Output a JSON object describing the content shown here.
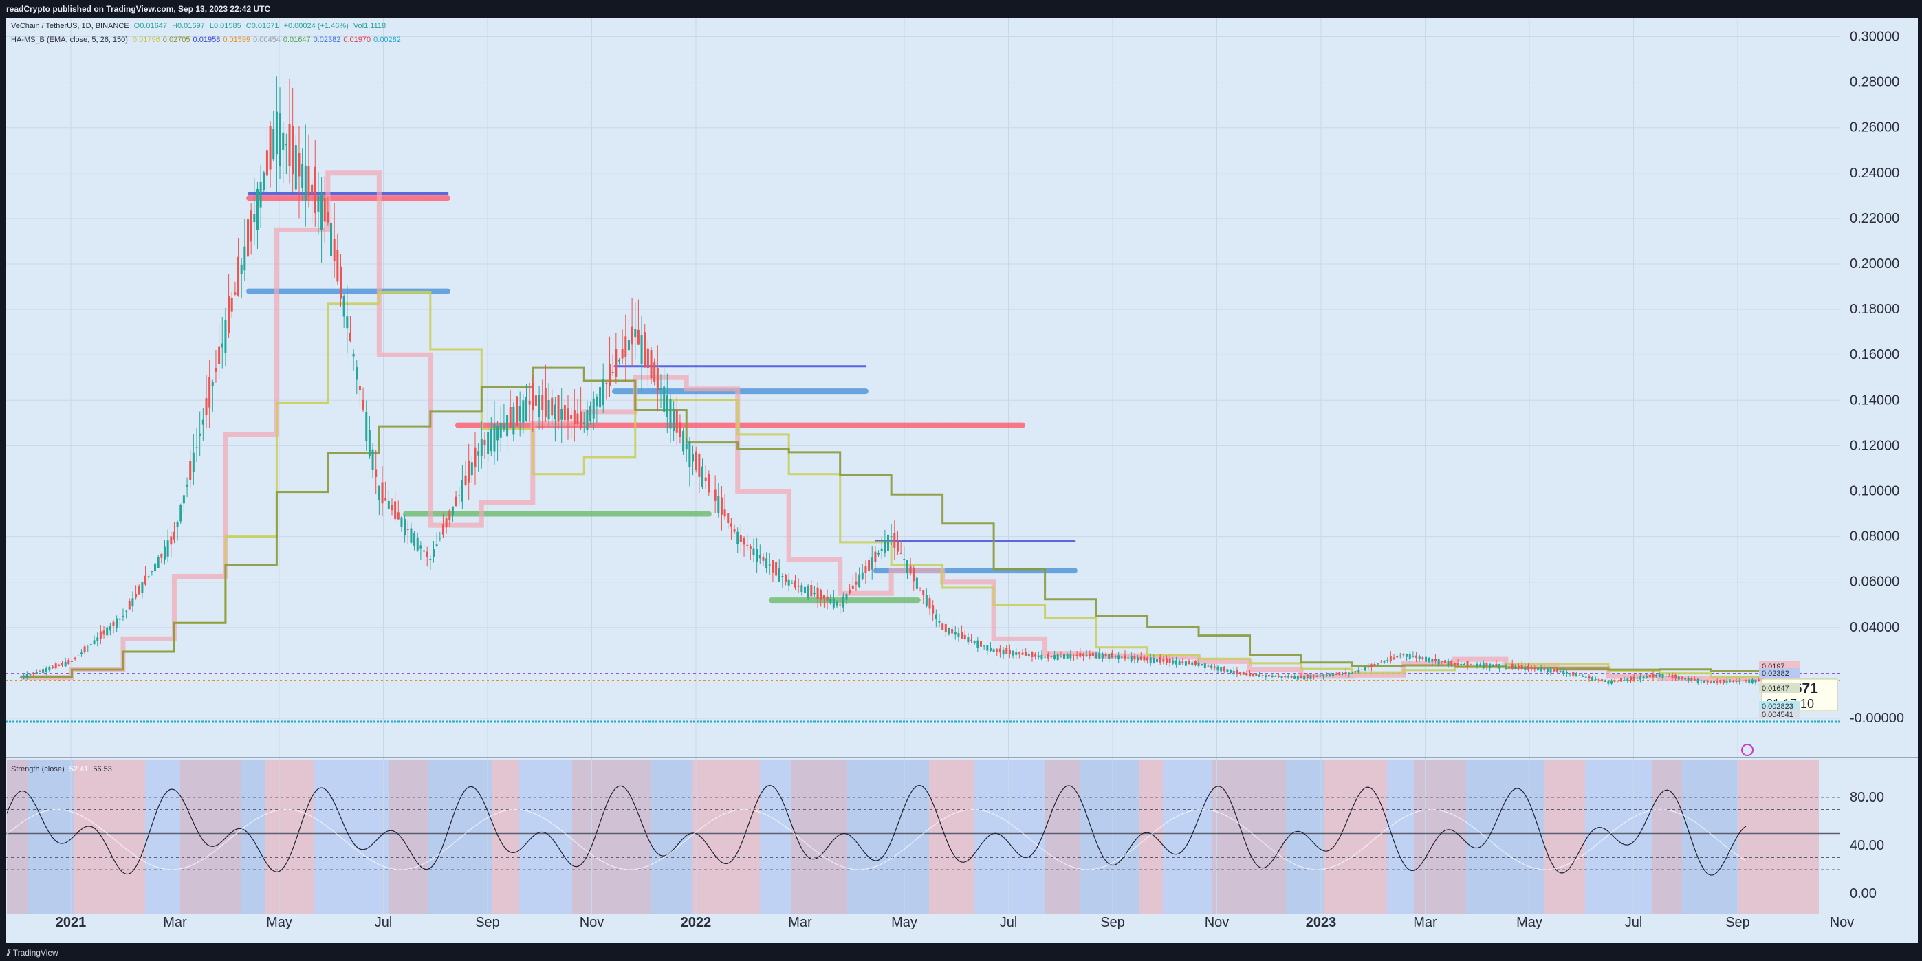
{
  "header": {
    "published": "readCrypto published on TradingView.com, Sep 13, 2023 22:42 UTC"
  },
  "legend": {
    "symbol": "VeChain / TetherUS, 1D, BINANCE",
    "open": "O0.01647",
    "high": "H0.01697",
    "low": "L0.01585",
    "close": "C0.01671",
    "change": "+0.00024 (+1.46%)",
    "volume": "Vol1.1118",
    "indicator": "HA-MS_B (EMA, close, 5, 26, 150)",
    "indicator_values": [
      {
        "text": "0.01796",
        "color": "#c8c84a"
      },
      {
        "text": "0.02705",
        "color": "#8a8f2a"
      },
      {
        "text": "0.01958",
        "color": "#3a46d8"
      },
      {
        "text": "0.01599",
        "color": "#e8901a"
      },
      {
        "text": "0.00454",
        "color": "#9aa0a8"
      },
      {
        "text": "0.01647",
        "color": "#4aa84a"
      },
      {
        "text": "0.02382",
        "color": "#3a72d8"
      },
      {
        "text": "0.01970",
        "color": "#e83a4a"
      },
      {
        "text": "0.00282",
        "color": "#22aacc"
      }
    ]
  },
  "osc_legend": {
    "name": "Strength (close)",
    "v1": "52.41",
    "v2": "56.53"
  },
  "price_badges": {
    "last": "0.01671",
    "countdown": "01:17:10",
    "others": [
      "0.0197",
      "0.02382",
      "0.01647",
      "0.002823",
      "0.004541"
    ]
  },
  "footer": {
    "brand": "TradingView"
  },
  "colors": {
    "background": "#dce9f6",
    "blue_level": "#4a5ae0",
    "red_level": "#ff5a6a",
    "green_level": "#6cba6c",
    "light_blue_level": "#4a94d8",
    "olive": "#8a9a3a",
    "yellow": "#c8cf5a",
    "orange": "#f4a233",
    "pink": "#f4a6b4"
  },
  "chart_data": [
    {
      "type": "line",
      "title": "VeChain / TetherUS, 1D, BINANCE",
      "x_tick_labels": [
        "2021",
        "Mar",
        "May",
        "Jul",
        "Sep",
        "Nov",
        "2022",
        "Mar",
        "May",
        "Jul",
        "Sep",
        "Nov",
        "2023",
        "Mar",
        "May",
        "Jul",
        "Sep",
        "Nov"
      ],
      "y_tick_labels": [
        "0.30000",
        "0.28000",
        "0.26000",
        "0.24000",
        "0.22000",
        "0.20000",
        "0.18000",
        "0.16000",
        "0.14000",
        "0.12000",
        "0.10000",
        "0.08000",
        "0.06000",
        "0.04000",
        "-0.00000"
      ],
      "ylim": [
        -0.004,
        0.305
      ],
      "x": [
        "2020-12",
        "2021-01",
        "2021-02",
        "2021-03",
        "2021-04",
        "2021-04",
        "2021-05",
        "2021-06",
        "2021-07",
        "2021-08",
        "2021-09",
        "2021-10",
        "2021-11",
        "2021-12",
        "2022-01",
        "2022-02",
        "2022-03",
        "2022-04",
        "2022-05",
        "2022-06",
        "2022-07",
        "2022-08",
        "2022-09",
        "2022-10",
        "2022-11",
        "2022-12",
        "2023-01",
        "2023-02",
        "2023-03",
        "2023-04",
        "2023-05",
        "2023-06",
        "2023-07",
        "2023-08",
        "2023-09"
      ],
      "series": [
        {
          "values": [
            0.018,
            0.025,
            0.045,
            0.08,
            0.17,
            0.26,
            0.22,
            0.1,
            0.07,
            0.12,
            0.14,
            0.13,
            0.17,
            0.12,
            0.08,
            0.06,
            0.05,
            0.08,
            0.04,
            0.03,
            0.027,
            0.028,
            0.026,
            0.024,
            0.019,
            0.018,
            0.02,
            0.028,
            0.024,
            0.023,
            0.021,
            0.016,
            0.019,
            0.016,
            0.0167
          ]
        }
      ],
      "horizontal_levels": [
        {
          "color": "red",
          "value": 0.229,
          "from": "2021-04",
          "to": "2021-08"
        },
        {
          "color": "blue",
          "value": 0.231,
          "from": "2021-04",
          "to": "2021-08"
        },
        {
          "color": "light-blue",
          "value": 0.188,
          "from": "2021-04",
          "to": "2021-08"
        },
        {
          "color": "red",
          "value": 0.129,
          "from": "2021-08",
          "to": "2022-07"
        },
        {
          "color": "blue",
          "value": 0.155,
          "from": "2021-11",
          "to": "2022-04"
        },
        {
          "color": "light-blue",
          "value": 0.144,
          "from": "2021-11",
          "to": "2022-04"
        },
        {
          "color": "green",
          "value": 0.09,
          "from": "2021-07",
          "to": "2022-01"
        },
        {
          "color": "blue",
          "value": 0.078,
          "from": "2022-04",
          "to": "2022-08"
        },
        {
          "color": "light-blue",
          "value": 0.065,
          "from": "2022-04",
          "to": "2022-08"
        },
        {
          "color": "green",
          "value": 0.052,
          "from": "2022-02",
          "to": "2022-05"
        }
      ]
    },
    {
      "type": "line",
      "title": "Strength (close)",
      "y_tick_labels": [
        "80.00",
        "40.00",
        "0.00"
      ],
      "ylim": [
        -5,
        105
      ],
      "levels": [
        80,
        70,
        50,
        30,
        20
      ]
    }
  ]
}
